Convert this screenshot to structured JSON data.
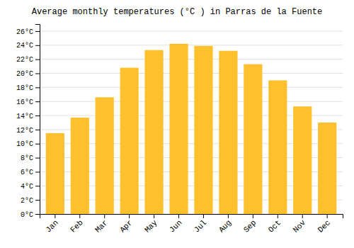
{
  "chart_data": {
    "type": "bar",
    "title": "Average monthly temperatures (°C ) in Parras de la Fuente",
    "categories": [
      "Jan",
      "Feb",
      "Mar",
      "Apr",
      "May",
      "Jun",
      "Jul",
      "Aug",
      "Sep",
      "Oct",
      "Nov",
      "Dec"
    ],
    "values": [
      11.5,
      13.7,
      16.6,
      20.8,
      23.3,
      24.2,
      23.9,
      23.2,
      21.3,
      19.0,
      15.3,
      13.0
    ],
    "color": "#FFC02E",
    "ylim": [
      0,
      27
    ],
    "yticks": [
      {
        "value": 0,
        "label": "0°C"
      },
      {
        "value": 2,
        "label": "2°C"
      },
      {
        "value": 4,
        "label": "4°C"
      },
      {
        "value": 6,
        "label": "6°C"
      },
      {
        "value": 8,
        "label": "8°C"
      },
      {
        "value": 10,
        "label": "10°C"
      },
      {
        "value": 12,
        "label": "12°C"
      },
      {
        "value": 14,
        "label": "14°C"
      },
      {
        "value": 16,
        "label": "16°C"
      },
      {
        "value": 18,
        "label": "18°C"
      },
      {
        "value": 20,
        "label": "20°C"
      },
      {
        "value": 22,
        "label": "22°C"
      },
      {
        "value": 24,
        "label": "24°C"
      },
      {
        "value": 26,
        "label": "26°C"
      }
    ],
    "grid": true
  }
}
